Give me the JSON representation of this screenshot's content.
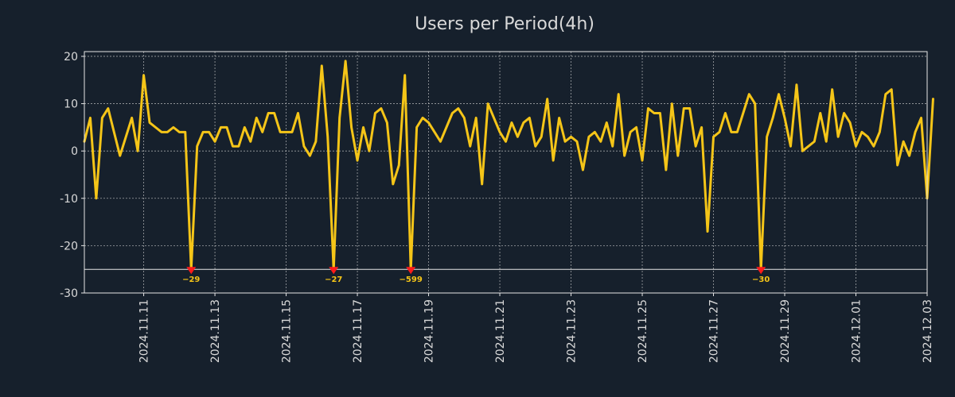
{
  "chart_data": {
    "type": "line",
    "title": "Users per Period(4h)",
    "xlabel": "",
    "ylabel": "",
    "ylim": [
      -30,
      21
    ],
    "yticks": [
      20,
      10,
      0,
      -10,
      -20,
      -30
    ],
    "xlim": [
      0,
      142
    ],
    "xtick_labels": [
      "2024.11.11",
      "2024.11.13",
      "2024.11.15",
      "2024.11.17",
      "2024.11.19",
      "2024.11.21",
      "2024.11.23",
      "2024.11.25",
      "2024.11.27",
      "2024.11.29",
      "2024.12.01",
      "2024.12.03"
    ],
    "xtick_positions": [
      10,
      22,
      34,
      46,
      58,
      70,
      82,
      94,
      106,
      118,
      130,
      142
    ],
    "grid": true,
    "clip_floor": -25,
    "series": [
      {
        "name": "Users",
        "color": "#f5c518",
        "values": [
          2,
          7,
          -10,
          7,
          9,
          4,
          -1,
          3,
          7,
          0,
          16,
          6,
          5,
          4,
          4,
          5,
          4,
          4,
          -25,
          1,
          4,
          4,
          2,
          5,
          5,
          1,
          1,
          5,
          2,
          7,
          4,
          8,
          8,
          4,
          4,
          4,
          8,
          1,
          -1,
          2,
          18,
          3,
          -25,
          7,
          19,
          5,
          -2,
          5,
          0,
          8,
          9,
          6,
          -7,
          -3,
          16,
          -25,
          5,
          7,
          6,
          4,
          2,
          5,
          8,
          9,
          7,
          1,
          7,
          -7,
          10,
          7,
          4,
          2,
          6,
          3,
          6,
          7,
          1,
          3,
          11,
          -2,
          7,
          2,
          3,
          2,
          -4,
          3,
          4,
          2,
          6,
          1,
          12,
          -1,
          4,
          5,
          -2,
          9,
          8,
          8,
          -4,
          10,
          -1,
          9,
          9,
          1,
          5,
          -17,
          3,
          4,
          8,
          4,
          4,
          8,
          12,
          10,
          -25,
          3,
          7,
          12,
          7,
          1,
          14,
          0,
          1,
          2,
          8,
          2,
          13,
          3,
          8,
          6,
          1,
          4,
          3,
          1,
          4,
          12,
          13,
          -3,
          2,
          -1,
          4,
          7,
          -10,
          11
        ]
      }
    ],
    "annotations": [
      {
        "x": 18,
        "value": -25,
        "label": "−29"
      },
      {
        "x": 42,
        "value": -25,
        "label": "−27"
      },
      {
        "x": 55,
        "value": -25,
        "label": "−599"
      },
      {
        "x": 114,
        "value": -25,
        "label": "−30"
      }
    ],
    "annotation_colors": {
      "marker": "#ff1a1a",
      "text": "#f5c518"
    }
  }
}
